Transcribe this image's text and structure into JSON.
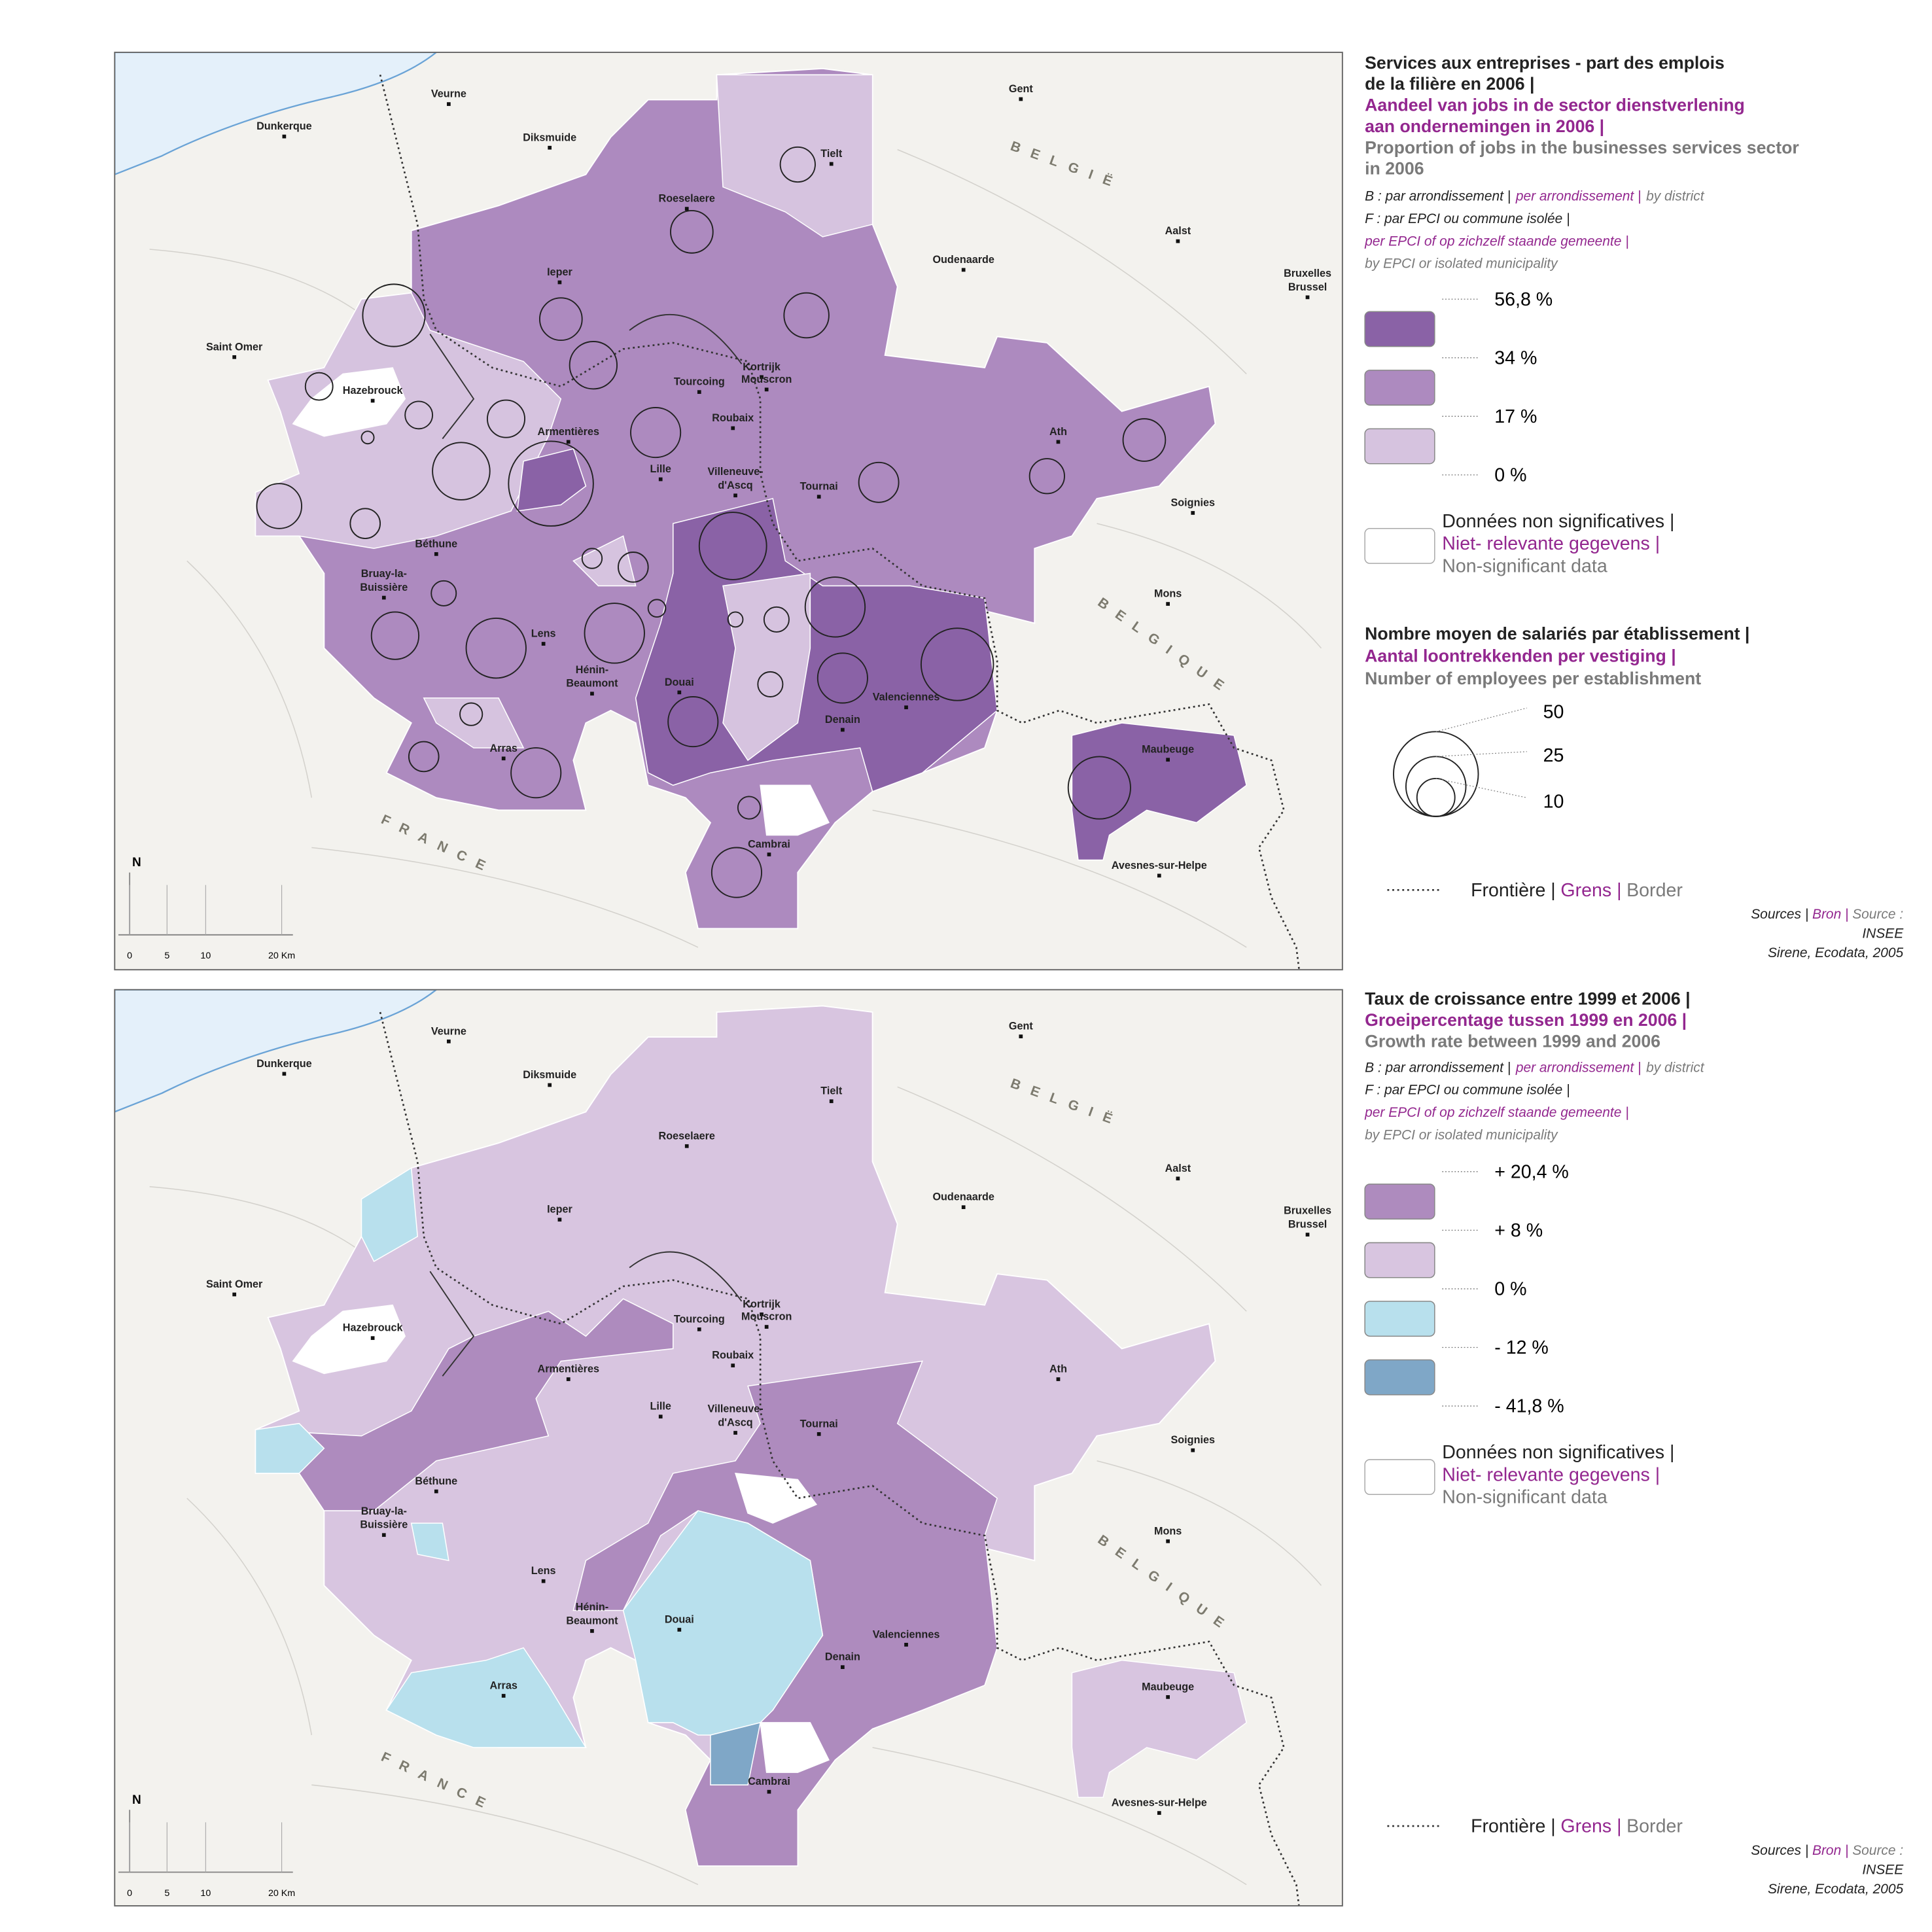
{
  "cities": [
    [
      "Dunkerque"
    ],
    [
      "Veurne"
    ],
    [
      "Diksmuide"
    ],
    [
      "Gent"
    ],
    [
      "Tielt"
    ],
    [
      "Roeselaere"
    ],
    [
      "Ieper"
    ],
    [
      "Oudenaarde"
    ],
    [
      "Aalst"
    ],
    [
      "Bruxelles",
      "Brussel"
    ],
    [
      "Saint Omer"
    ],
    [
      "Kortrijk"
    ],
    [
      "Tourcoing"
    ],
    [
      "Mouscron"
    ],
    [
      "Hazebrouck"
    ],
    [
      "Armentières"
    ],
    [
      "Roubaix"
    ],
    [
      "Ath"
    ],
    [
      "Lille"
    ],
    [
      "Villeneuve-",
      "d'Ascq"
    ],
    [
      "Tournai"
    ],
    [
      "Soignies"
    ],
    [
      "Béthune"
    ],
    [
      "Bruay-la-",
      "Buissière"
    ],
    [
      "Mons"
    ],
    [
      "Lens"
    ],
    [
      "Hénin-",
      "Beaumont"
    ],
    [
      "Douai"
    ],
    [
      "Valenciennes"
    ],
    [
      "Denain"
    ],
    [
      "Arras"
    ],
    [
      "Maubeuge"
    ],
    [
      "Cambrai"
    ],
    [
      "Avesnes-sur-Helpe"
    ]
  ],
  "countries": [
    "BELGIË",
    "BELGIQUE",
    "FRANCE"
  ],
  "north": "N",
  "scale": [
    "0",
    "5",
    "10",
    "20 Km"
  ],
  "maps": [
    {
      "title": {
        "fr": [
          "Services aux entreprises - part des emplois",
          "de la filière en 2006 |"
        ],
        "nl": [
          "Aandeel van jobs in de sector dienstverlening",
          "aan ondernemingen in 2006 |"
        ],
        "en": [
          "Proportion of jobs in the businesses services sector",
          "in 2006"
        ]
      },
      "notes": [
        [
          "B : par arrondissement |",
          "per arrondissement |",
          "by district"
        ],
        [
          "F : par EPCI ou commune isolée |"
        ],
        [
          "per EPCI of op zichzelf staande gemeente |"
        ],
        [
          "by EPCI or isolated municipality"
        ]
      ],
      "legend": {
        "colors": [
          "#8a62a6",
          "#ad8abf",
          "#d6c3df"
        ],
        "breaks": [
          "56,8 %",
          "34 %",
          "17 %",
          "0 %"
        ]
      },
      "nodata": [
        "Données non significatives |",
        "Niet- relevante gegevens |",
        "Non-significant data"
      ],
      "circles": {
        "title": {
          "fr": [
            "Nombre moyen de salariés par établissement |"
          ],
          "nl": [
            "Aantal loontrekkenden per vestiging |"
          ],
          "en": [
            "Number of employees per establishment"
          ]
        },
        "sizes": [
          50,
          25,
          10
        ]
      },
      "border": [
        "Frontière |",
        "Grens |",
        "Border"
      ],
      "sources": [
        [
          "Sources |",
          "Bron |",
          "Source :"
        ],
        [
          "INSEE"
        ],
        [
          "Sirene, Ecodata, 2005"
        ]
      ]
    },
    {
      "title": {
        "fr": [
          "Taux de croissance entre 1999 et 2006 |"
        ],
        "nl": [
          "Groeipercentage tussen 1999 en 2006 |"
        ],
        "en": [
          "Growth rate between 1999 and 2006"
        ]
      },
      "notes": [
        [
          "B : par arrondissement |",
          "per arrondissement |",
          "by district"
        ],
        [
          "F : par EPCI ou commune isolée |"
        ],
        [
          "per EPCI of op zichzelf staande gemeente |"
        ],
        [
          "by EPCI or isolated municipality"
        ]
      ],
      "legend": {
        "colors": [
          "#ae8bbe",
          "#d8c5e0",
          "#b8e0ed",
          "#7fa7c7"
        ],
        "breaks": [
          "+ 20,4 %",
          "+ 8 %",
          "0 %",
          "- 12 %",
          "- 41,8 %"
        ]
      },
      "nodata": [
        "Données non significatives |",
        "Niet- relevante gegevens |",
        "Non-significant data"
      ],
      "border": [
        "Frontière |",
        "Grens |",
        "Border"
      ],
      "sources": [
        [
          "Sources |",
          "Bron |",
          "Source :"
        ],
        [
          "INSEE"
        ],
        [
          "Sirene, Ecodata, 2005"
        ]
      ]
    }
  ]
}
